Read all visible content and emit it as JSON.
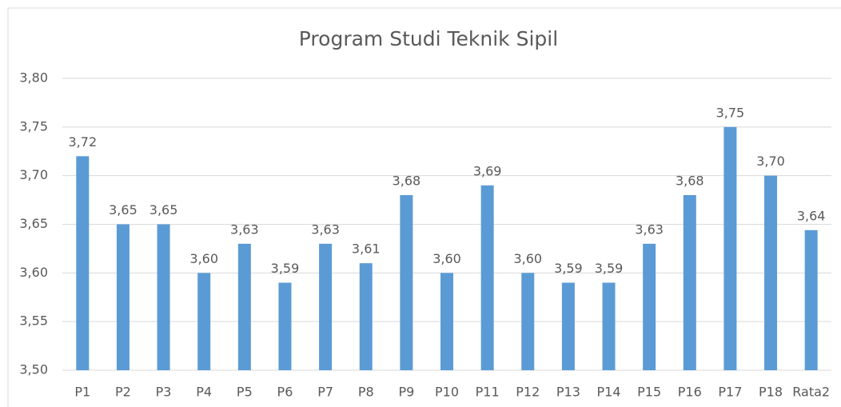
{
  "chart_data": {
    "type": "bar",
    "title": "Program Studi Teknik Sipil",
    "categories": [
      "P1",
      "P2",
      "P3",
      "P4",
      "P5",
      "P6",
      "P7",
      "P8",
      "P9",
      "P10",
      "P11",
      "P12",
      "P13",
      "P14",
      "P15",
      "P16",
      "P17",
      "P18",
      "Rata2"
    ],
    "values": [
      3.72,
      3.65,
      3.65,
      3.6,
      3.63,
      3.59,
      3.63,
      3.61,
      3.68,
      3.6,
      3.69,
      3.6,
      3.59,
      3.59,
      3.63,
      3.68,
      3.75,
      3.7,
      3.644
    ],
    "value_labels": [
      "3,72",
      "3,65",
      "3,65",
      "3,60",
      "3,63",
      "3,59",
      "3,63",
      "3,61",
      "3,68",
      "3,60",
      "3,69",
      "3,60",
      "3,59",
      "3,59",
      "3,63",
      "3,68",
      "3,75",
      "3,70",
      "3,64"
    ],
    "color": "#5b9bd5",
    "ylim": [
      3.5,
      3.8
    ],
    "yticks": [
      {
        "value": 3.5,
        "label": "3,50"
      },
      {
        "value": 3.55,
        "label": "3,55"
      },
      {
        "value": 3.6,
        "label": "3,60"
      },
      {
        "value": 3.65,
        "label": "3,65"
      },
      {
        "value": 3.7,
        "label": "3,70"
      },
      {
        "value": 3.75,
        "label": "3,75"
      },
      {
        "value": 3.8,
        "label": "3,80"
      }
    ],
    "grid": true
  }
}
